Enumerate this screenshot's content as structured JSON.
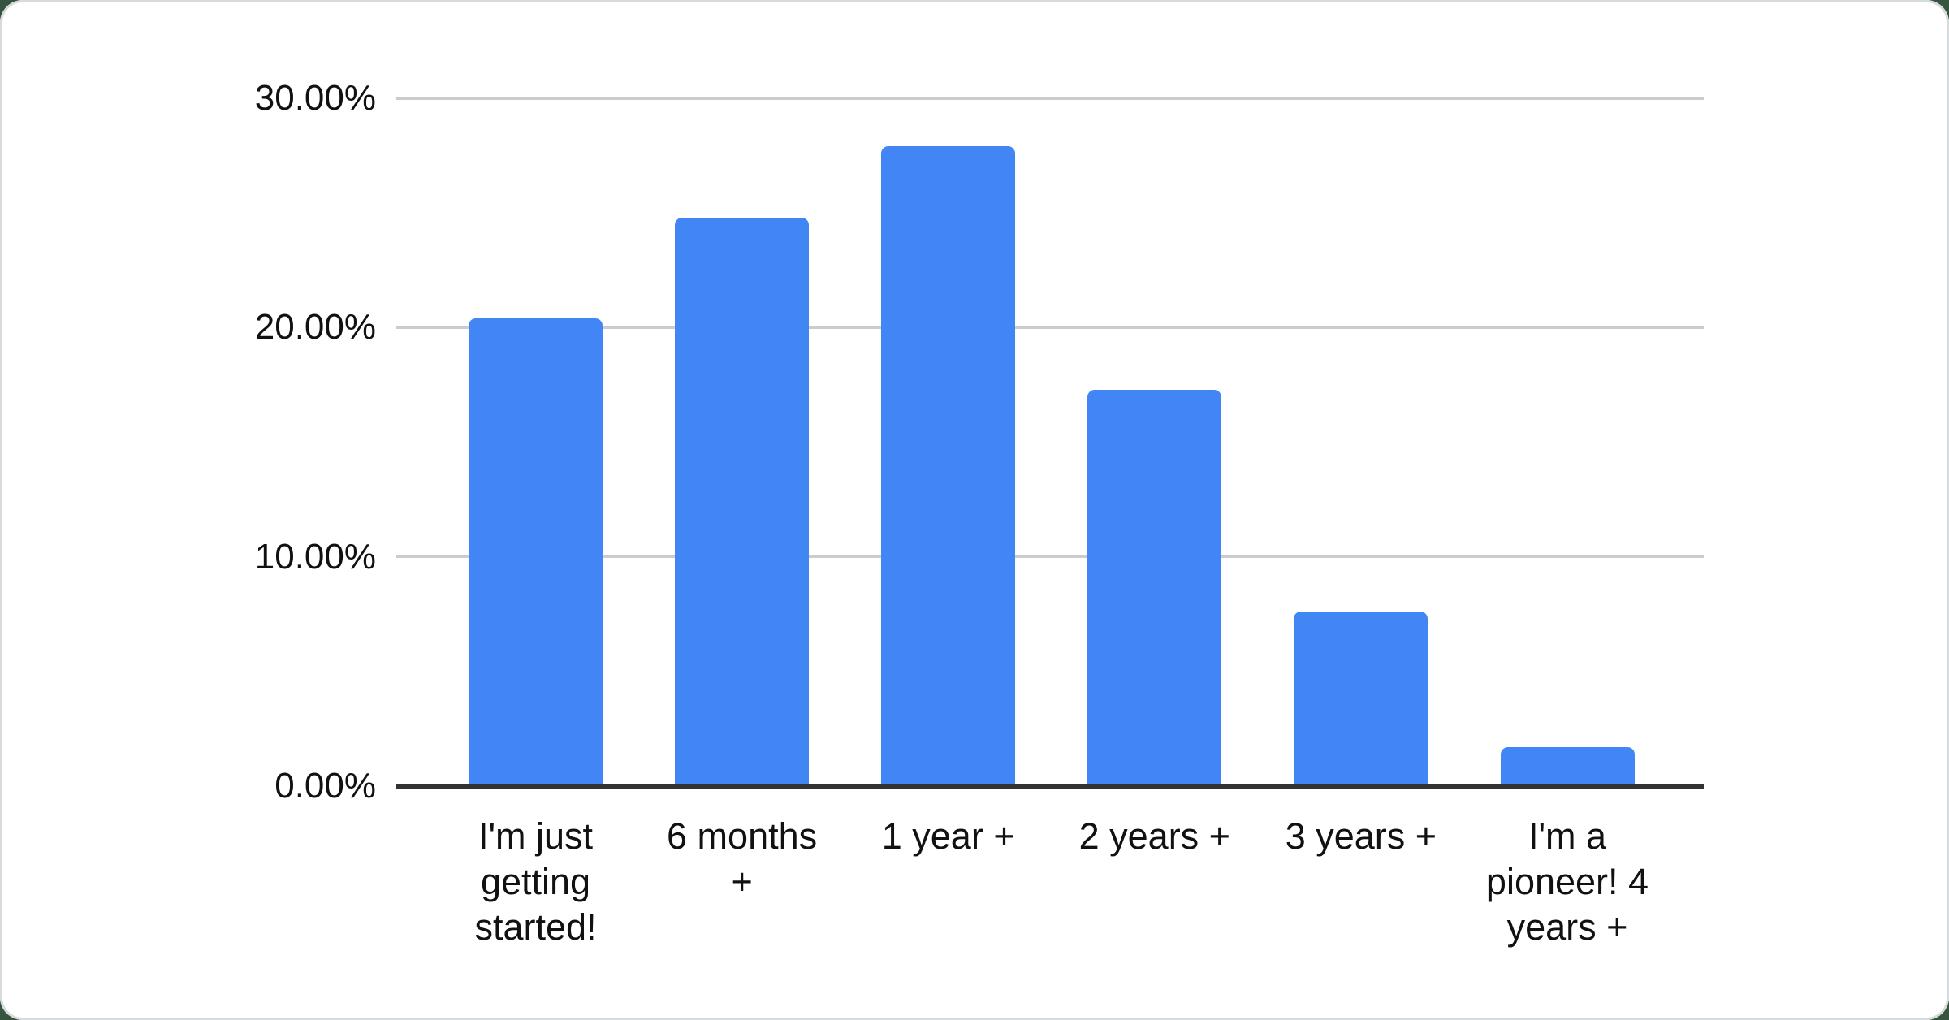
{
  "page": {
    "background_color": "#37543f",
    "card_color": "#ffffff"
  },
  "chart_data": {
    "type": "bar",
    "title": "",
    "xlabel": "",
    "ylabel": "",
    "categories": [
      "I'm just getting started!",
      "6 months +",
      "1 year +",
      "2 years +",
      "3 years +",
      "I'm a pioneer! 4 years +"
    ],
    "values": [
      20.4,
      24.8,
      27.9,
      17.3,
      7.6,
      1.7
    ],
    "ylim": [
      0,
      30
    ],
    "yticks": [
      {
        "value": 0,
        "label": "0.00%"
      },
      {
        "value": 10,
        "label": "10.00%"
      },
      {
        "value": 20,
        "label": "20.00%"
      },
      {
        "value": 30,
        "label": "30.00%"
      }
    ],
    "grid": true,
    "legend": "none",
    "colors": {
      "bar": "#4285f4",
      "gridline": "#cccccc",
      "axis": "#333333",
      "tick_text": "#111111"
    }
  }
}
